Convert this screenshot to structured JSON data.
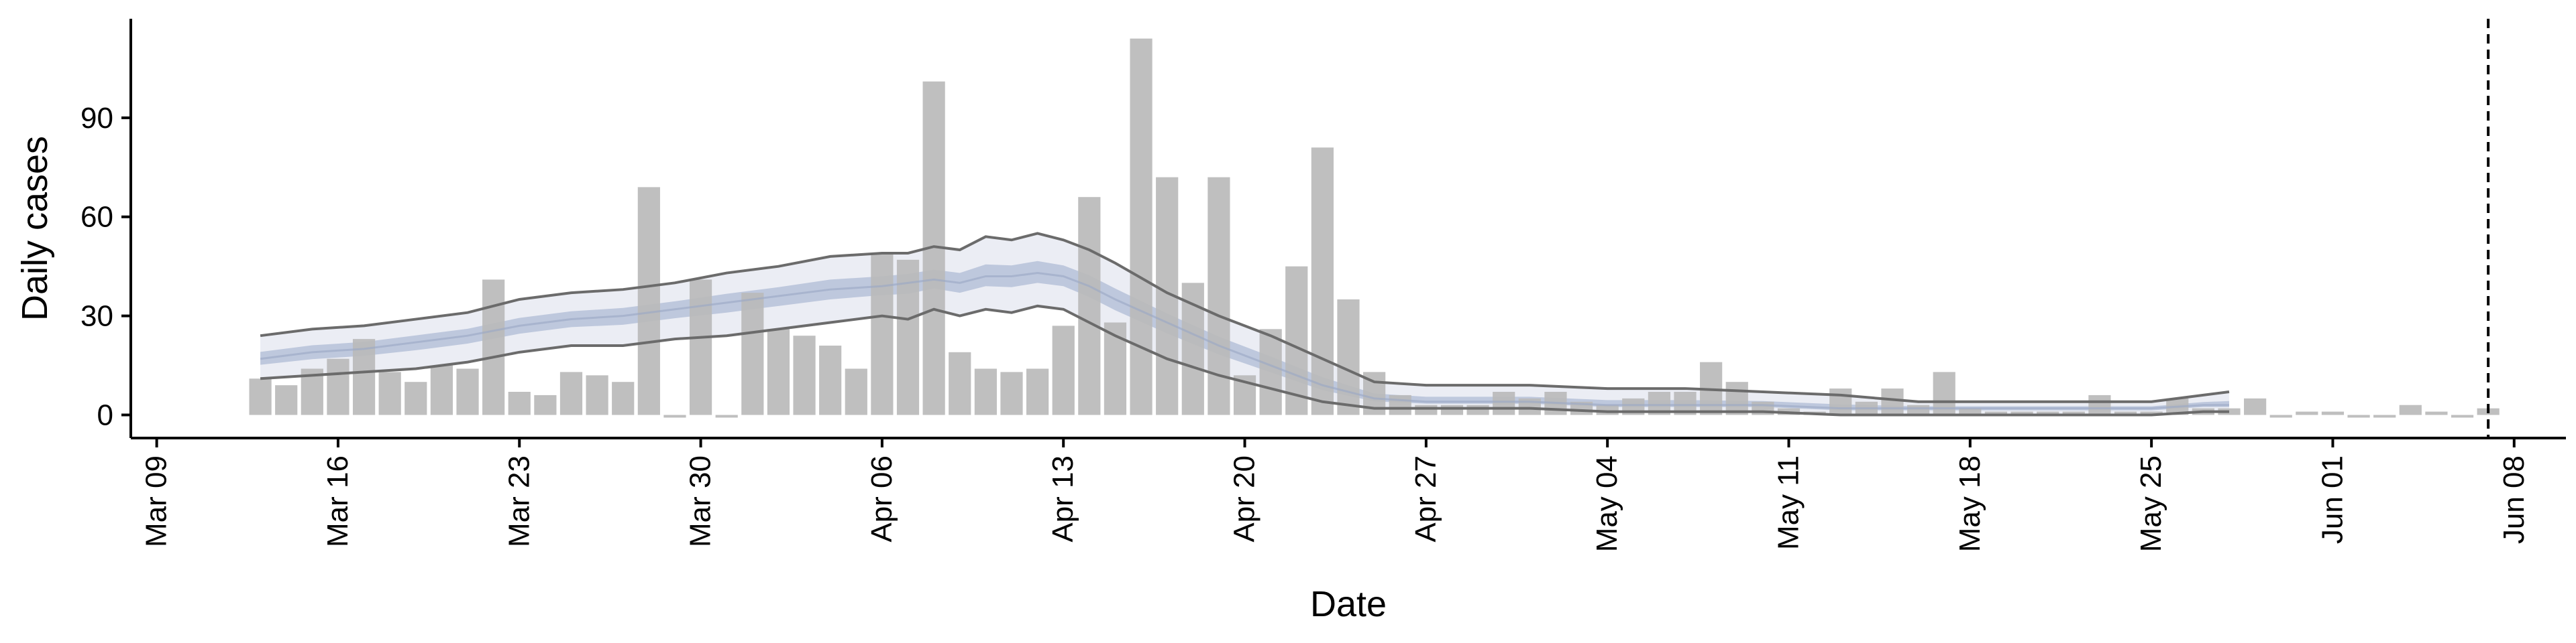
{
  "chart_data": {
    "type": "bar",
    "title": "",
    "xlabel": "Date",
    "ylabel": "Daily cases",
    "x_ticks": [
      "Mar 09",
      "Mar 16",
      "Mar 23",
      "Mar 30",
      "Apr 06",
      "Apr 13",
      "Apr 20",
      "Apr 27",
      "May 04",
      "May 11",
      "May 18",
      "May 25",
      "Jun 01",
      "Jun 08"
    ],
    "y_ticks": [
      0,
      30,
      60,
      90
    ],
    "xlim": [
      "2020-03-08",
      "2020-06-10"
    ],
    "ylim": [
      -7,
      120
    ],
    "grid": false,
    "vline_date": "2020-06-07",
    "vline_style": "dashed",
    "colors": {
      "bars": "#bababa",
      "band_outer": "#e8eaf2",
      "band_inner": "#b6c1d8",
      "line_median": "#9aa6c4",
      "line_bounds": "#6b6b6b",
      "axis": "#000000"
    },
    "bars": {
      "dates": [
        "2020-03-13",
        "2020-03-14",
        "2020-03-15",
        "2020-03-16",
        "2020-03-17",
        "2020-03-18",
        "2020-03-19",
        "2020-03-20",
        "2020-03-21",
        "2020-03-22",
        "2020-03-23",
        "2020-03-24",
        "2020-03-25",
        "2020-03-26",
        "2020-03-27",
        "2020-03-28",
        "2020-03-29",
        "2020-03-30",
        "2020-03-31",
        "2020-04-01",
        "2020-04-02",
        "2020-04-03",
        "2020-04-04",
        "2020-04-05",
        "2020-04-06",
        "2020-04-07",
        "2020-04-08",
        "2020-04-09",
        "2020-04-10",
        "2020-04-11",
        "2020-04-12",
        "2020-04-13",
        "2020-04-14",
        "2020-04-15",
        "2020-04-16",
        "2020-04-17",
        "2020-04-18",
        "2020-04-19",
        "2020-04-20",
        "2020-04-21",
        "2020-04-22",
        "2020-04-23",
        "2020-04-24",
        "2020-04-25",
        "2020-04-26",
        "2020-04-27",
        "2020-04-28",
        "2020-04-29",
        "2020-04-30",
        "2020-05-01",
        "2020-05-02",
        "2020-05-03",
        "2020-05-04",
        "2020-05-05",
        "2020-05-06",
        "2020-05-07",
        "2020-05-08",
        "2020-05-09",
        "2020-05-10",
        "2020-05-11",
        "2020-05-12",
        "2020-05-13",
        "2020-05-14",
        "2020-05-15",
        "2020-05-16",
        "2020-05-17",
        "2020-05-18",
        "2020-05-19",
        "2020-05-20",
        "2020-05-21",
        "2020-05-22",
        "2020-05-23",
        "2020-05-24",
        "2020-05-25",
        "2020-05-26",
        "2020-05-27",
        "2020-05-28",
        "2020-05-29",
        "2020-05-30",
        "2020-05-31",
        "2020-06-01",
        "2020-06-02",
        "2020-06-03",
        "2020-06-04",
        "2020-06-05",
        "2020-06-06",
        "2020-06-07"
      ],
      "values": [
        11,
        9,
        14,
        17,
        23,
        13,
        10,
        15,
        14,
        41,
        7,
        6,
        13,
        12,
        10,
        69,
        0,
        41,
        0,
        37,
        26,
        24,
        21,
        14,
        49,
        47,
        101,
        19,
        14,
        13,
        14,
        27,
        66,
        28,
        114,
        72,
        40,
        72,
        12,
        26,
        45,
        81,
        35,
        13,
        6,
        3,
        3,
        3,
        7,
        5,
        7,
        4,
        3,
        5,
        7,
        7,
        16,
        10,
        4,
        2,
        1,
        8,
        4,
        8,
        3,
        13,
        2,
        1,
        1,
        1,
        1,
        6,
        1,
        1,
        5,
        2,
        2,
        5,
        0,
        1,
        1,
        0,
        0,
        3,
        1,
        0,
        2
      ]
    },
    "series": [
      {
        "role": "upper_bound",
        "x": [
          "2020-03-13",
          "2020-03-15",
          "2020-03-17",
          "2020-03-19",
          "2020-03-21",
          "2020-03-23",
          "2020-03-25",
          "2020-03-27",
          "2020-03-29",
          "2020-03-31",
          "2020-04-02",
          "2020-04-04",
          "2020-04-06",
          "2020-04-07",
          "2020-04-08",
          "2020-04-09",
          "2020-04-10",
          "2020-04-11",
          "2020-04-12",
          "2020-04-13",
          "2020-04-14",
          "2020-04-15",
          "2020-04-17",
          "2020-04-19",
          "2020-04-21",
          "2020-04-23",
          "2020-04-25",
          "2020-04-27",
          "2020-04-29",
          "2020-05-01",
          "2020-05-04",
          "2020-05-07",
          "2020-05-10",
          "2020-05-13",
          "2020-05-16",
          "2020-05-19",
          "2020-05-22",
          "2020-05-25",
          "2020-05-27",
          "2020-05-28"
        ],
        "values": [
          24,
          26,
          27,
          29,
          31,
          35,
          37,
          38,
          40,
          43,
          45,
          48,
          49,
          49,
          51,
          50,
          54,
          53,
          55,
          53,
          50,
          46,
          37,
          30,
          24,
          17,
          10,
          9,
          9,
          9,
          8,
          8,
          7,
          6,
          4,
          4,
          4,
          4,
          6,
          7
        ]
      },
      {
        "role": "median",
        "x": [
          "2020-03-13",
          "2020-03-15",
          "2020-03-17",
          "2020-03-19",
          "2020-03-21",
          "2020-03-23",
          "2020-03-25",
          "2020-03-27",
          "2020-03-29",
          "2020-03-31",
          "2020-04-02",
          "2020-04-04",
          "2020-04-06",
          "2020-04-07",
          "2020-04-08",
          "2020-04-09",
          "2020-04-10",
          "2020-04-11",
          "2020-04-12",
          "2020-04-13",
          "2020-04-14",
          "2020-04-15",
          "2020-04-17",
          "2020-04-19",
          "2020-04-21",
          "2020-04-23",
          "2020-04-25",
          "2020-04-27",
          "2020-04-29",
          "2020-05-01",
          "2020-05-04",
          "2020-05-07",
          "2020-05-10",
          "2020-05-13",
          "2020-05-16",
          "2020-05-19",
          "2020-05-22",
          "2020-05-25",
          "2020-05-27",
          "2020-05-28"
        ],
        "values": [
          17,
          19,
          20,
          22,
          24,
          27,
          29,
          30,
          32,
          34,
          36,
          38,
          39,
          40,
          41,
          40,
          42,
          42,
          43,
          42,
          39,
          35,
          28,
          21,
          15,
          9,
          5,
          4,
          4,
          4,
          3,
          3,
          3,
          2,
          2,
          2,
          2,
          2,
          3,
          3
        ]
      },
      {
        "role": "lower_bound",
        "x": [
          "2020-03-13",
          "2020-03-15",
          "2020-03-17",
          "2020-03-19",
          "2020-03-21",
          "2020-03-23",
          "2020-03-25",
          "2020-03-27",
          "2020-03-29",
          "2020-03-31",
          "2020-04-02",
          "2020-04-04",
          "2020-04-06",
          "2020-04-07",
          "2020-04-08",
          "2020-04-09",
          "2020-04-10",
          "2020-04-11",
          "2020-04-12",
          "2020-04-13",
          "2020-04-14",
          "2020-04-15",
          "2020-04-17",
          "2020-04-19",
          "2020-04-21",
          "2020-04-23",
          "2020-04-25",
          "2020-04-27",
          "2020-04-29",
          "2020-05-01",
          "2020-05-04",
          "2020-05-07",
          "2020-05-10",
          "2020-05-13",
          "2020-05-16",
          "2020-05-19",
          "2020-05-22",
          "2020-05-25",
          "2020-05-27",
          "2020-05-28"
        ],
        "values": [
          11,
          12,
          13,
          14,
          16,
          19,
          21,
          21,
          23,
          24,
          26,
          28,
          30,
          29,
          32,
          30,
          32,
          31,
          33,
          32,
          28,
          24,
          17,
          12,
          8,
          4,
          2,
          2,
          2,
          2,
          1,
          1,
          1,
          0,
          0,
          0,
          0,
          0,
          1,
          1
        ]
      }
    ]
  }
}
